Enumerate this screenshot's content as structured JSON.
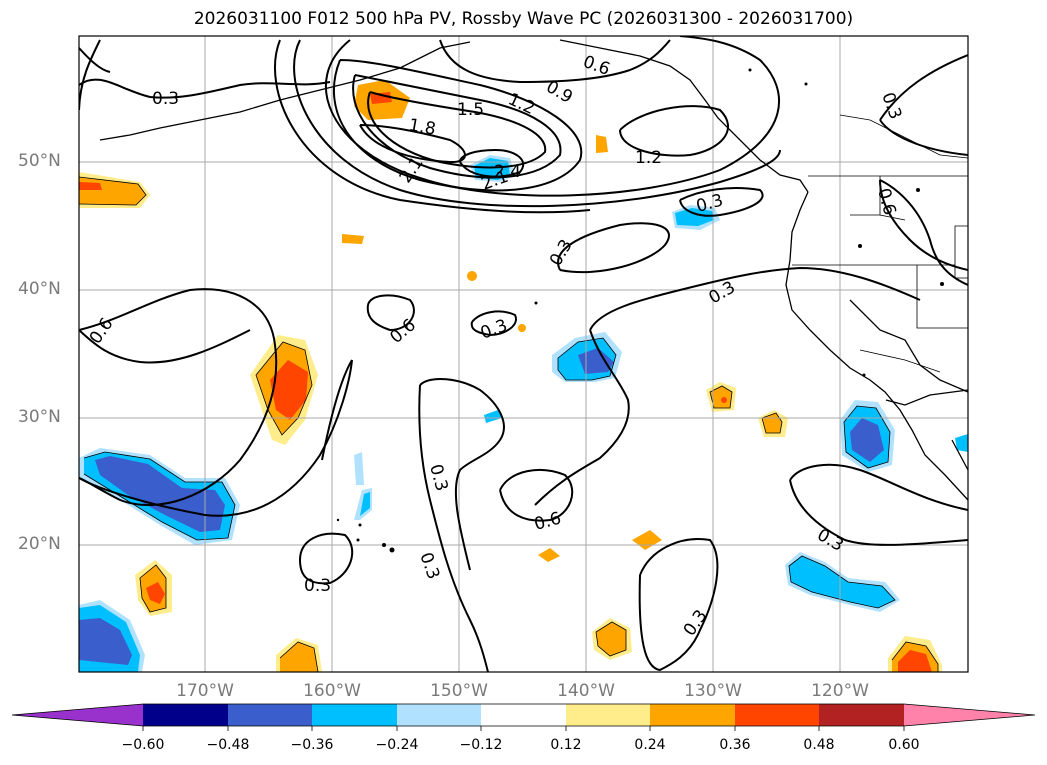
{
  "title": "2026031100 F012 500 hPa PV, Rossby Wave PC (2026031300 - 2026031700)",
  "lat_labels": [
    "50°N",
    "40°N",
    "30°N",
    "20°N"
  ],
  "lon_labels": [
    "170°W",
    "160°W",
    "150°W",
    "140°W",
    "130°W",
    "120°W"
  ],
  "contour_labels": [
    "0.3",
    "0.6",
    "0.9",
    "1.2",
    "1.5",
    "1.8",
    "2.1",
    "2.4"
  ],
  "colorbar": {
    "ticks": [
      "−0.60",
      "−0.48",
      "−0.36",
      "−0.24",
      "−0.12",
      "0.12",
      "0.24",
      "0.36",
      "0.48",
      "0.60"
    ],
    "colors": [
      "#9932cc",
      "#00008b",
      "#3a5fcd",
      "#00bfff",
      "#b0e2ff",
      "#ffffff",
      "#ffec8b",
      "#ffa500",
      "#ff4500",
      "#b22222",
      "#ff82ab"
    ]
  }
}
